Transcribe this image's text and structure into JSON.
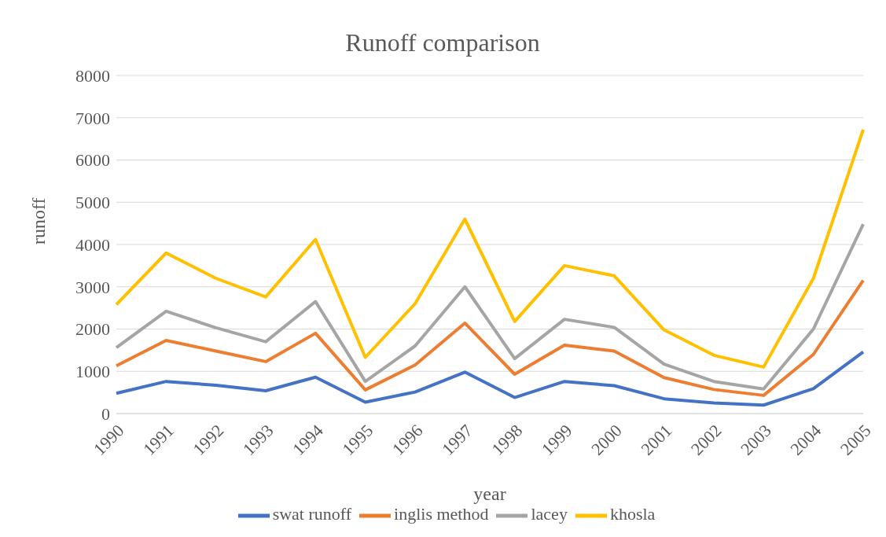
{
  "chart_data": {
    "type": "line",
    "title": "Runoff comparison",
    "xlabel": "year",
    "ylabel": "runoff",
    "categories": [
      "1990",
      "1991",
      "1992",
      "1993",
      "1994",
      "1995",
      "1996",
      "1997",
      "1998",
      "1999",
      "2000",
      "2001",
      "2002",
      "2003",
      "2004",
      "2005"
    ],
    "series": [
      {
        "name": "swat runoff",
        "color": "#4472c4",
        "values": [
          480,
          760,
          670,
          540,
          860,
          270,
          510,
          980,
          380,
          760,
          660,
          350,
          250,
          200,
          590,
          1460
        ]
      },
      {
        "name": "inglis method",
        "color": "#ed7d31",
        "values": [
          1130,
          1730,
          1480,
          1230,
          1900,
          560,
          1150,
          2140,
          930,
          1620,
          1480,
          850,
          570,
          430,
          1400,
          3150
        ]
      },
      {
        "name": "lacey",
        "color": "#a5a5a5",
        "values": [
          1560,
          2420,
          2030,
          1700,
          2650,
          760,
          1600,
          3000,
          1300,
          2230,
          2040,
          1170,
          760,
          580,
          2000,
          4480
        ]
      },
      {
        "name": "khosla",
        "color": "#ffc000",
        "values": [
          2580,
          3800,
          3200,
          2760,
          4120,
          1330,
          2600,
          4600,
          2180,
          3500,
          3260,
          1980,
          1380,
          1100,
          3200,
          6720
        ]
      }
    ],
    "ylim": [
      0,
      8000
    ],
    "yticks": [
      0,
      1000,
      2000,
      3000,
      4000,
      5000,
      6000,
      7000,
      8000
    ],
    "grid": "y",
    "legend": "bottom",
    "marker": "none",
    "line_style": "solid"
  }
}
